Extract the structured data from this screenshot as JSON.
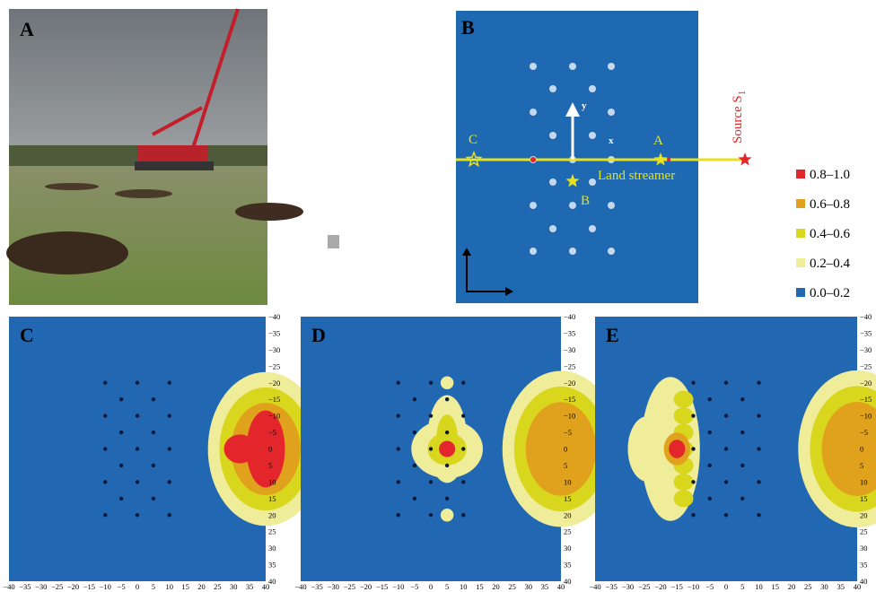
{
  "panels": {
    "a": {
      "label": "A"
    },
    "b": {
      "label": "B",
      "y_axis": "y",
      "x_axis": "x",
      "point_c": "C",
      "point_a": "A",
      "point_b": "B",
      "streamer": "Land streamer",
      "source": {
        "text": "Source S",
        "sub": "1"
      }
    },
    "c": {
      "label": "C"
    },
    "d": {
      "label": "D"
    },
    "e": {
      "label": "E"
    }
  },
  "legend": [
    {
      "label": "0.8–1.0",
      "color": "#e3262b"
    },
    {
      "label": "0.6–0.8",
      "color": "#e0a21c"
    },
    {
      "label": "0.4–0.6",
      "color": "#d9d61e"
    },
    {
      "label": "0.2–0.4",
      "color": "#efec9a"
    },
    {
      "label": "0.0–0.2",
      "color": "#2167b2"
    }
  ],
  "axes": {
    "xticks": [
      "−40",
      "−35",
      "−30",
      "−25",
      "−20",
      "−15",
      "−10",
      "−5",
      "0",
      "5",
      "10",
      "15",
      "20",
      "25",
      "30",
      "35",
      "40"
    ],
    "yticks": [
      "−40",
      "−35",
      "−30",
      "−25",
      "−20",
      "−15",
      "−10",
      "−5",
      "0",
      "5",
      "10",
      "15",
      "20",
      "25",
      "30",
      "35",
      "40"
    ]
  }
}
